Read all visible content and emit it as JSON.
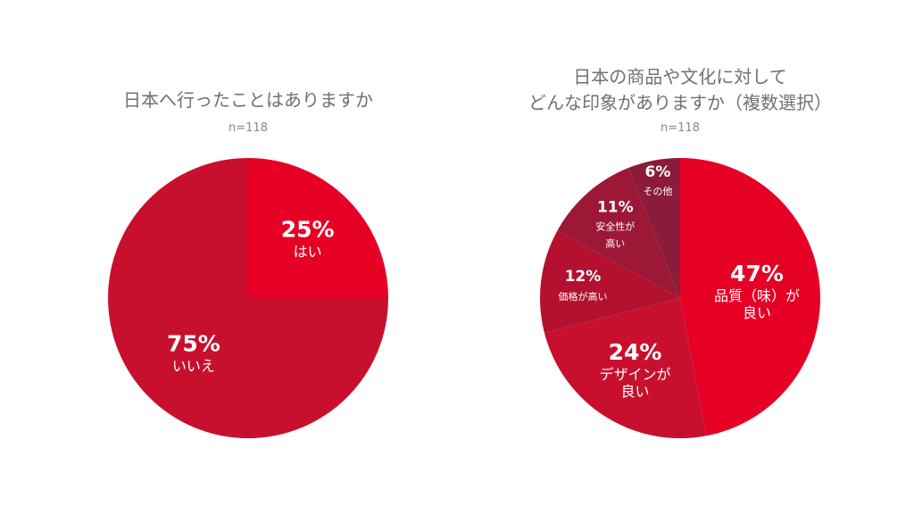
{
  "chart_data": [
    {
      "type": "pie",
      "title": [
        "日本へ行ったことはありますか"
      ],
      "subtitle": "n=118",
      "categories": [
        "はい",
        "いいえ"
      ],
      "values": [
        25,
        75
      ],
      "value_labels": [
        "25%",
        "75%"
      ],
      "colors": [
        "#e60026",
        "#c8102e"
      ]
    },
    {
      "type": "pie",
      "title": [
        "日本の商品や文化に対して",
        "どんな印象がありますか（複数選択）"
      ],
      "subtitle": "n=118",
      "categories": [
        "品質（味）が\n良い",
        "デザインが\n良い",
        "価格が高い",
        "安全性が\n高い",
        "その他"
      ],
      "values": [
        47,
        24,
        12,
        11,
        6
      ],
      "value_labels": [
        "47%",
        "24%",
        "12%",
        "11%",
        "6%"
      ],
      "colors": [
        "#e60026",
        "#c8102e",
        "#b3112f",
        "#9c1836",
        "#8a1b3a"
      ]
    }
  ]
}
